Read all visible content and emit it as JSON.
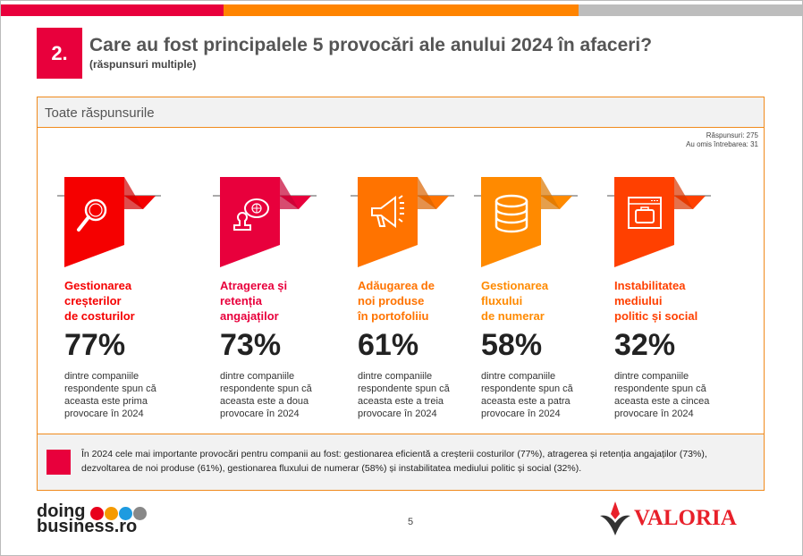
{
  "header": {
    "number": "2.",
    "title": "Care au fost principalele 5 provocări ale anului 2024 în afaceri?",
    "subtitle": "(răspunsuri multiple)"
  },
  "colors": {
    "red": "#e8003c",
    "orange": "#ff8400",
    "gray": "#bdbdbd"
  },
  "panel": {
    "title": "Toate răspunsurile",
    "responses": "Răspunsuri: 275",
    "skipped": "Au omis întrebarea: 31"
  },
  "cards": [
    {
      "icon": "magnifier-icon",
      "color": "#f50000",
      "title_lines": [
        "Gestionarea",
        "creșterilor",
        "de costurilor"
      ],
      "percent": "77%",
      "desc_lines": [
        "dintre companiile",
        "respondente spun că",
        "aceasta este prima",
        "provocare în 2024"
      ]
    },
    {
      "icon": "stamp-globe-icon",
      "color": "#e8003c",
      "title_lines": [
        "Atragerea și",
        "retenția",
        "angajaților"
      ],
      "percent": "73%",
      "desc_lines": [
        "dintre companiile",
        "respondente spun că",
        "aceasta este a doua",
        "provocare în 2024"
      ]
    },
    {
      "icon": "megaphone-icon",
      "color": "#ff7300",
      "title_lines": [
        "Adăugarea de",
        "noi produse",
        "în portofoliiu"
      ],
      "percent": "61%",
      "desc_lines": [
        "dintre companiile",
        "respondente spun că",
        "aceasta este a treia",
        "provocare în 2024"
      ]
    },
    {
      "icon": "database-icon",
      "color": "#ff8a00",
      "title_lines": [
        "Gestionarea",
        "fluxului",
        "de numerar"
      ],
      "percent": "58%",
      "desc_lines": [
        "dintre companiile",
        "respondente spun că",
        "aceasta este a patra",
        "provocare în 2024"
      ]
    },
    {
      "icon": "browser-briefcase-icon",
      "color": "#ff4000",
      "title_lines": [
        "Instabilitatea",
        "mediului",
        "politic și social"
      ],
      "percent": "32%",
      "desc_lines": [
        "dintre companiile",
        "respondente spun că",
        "aceasta este a cincea",
        "provocare în 2024"
      ]
    }
  ],
  "summary": "În 2024 cele mai importante provocări pentru companii au fost: gestionarea eficientă a creșterii costurilor (77%), atragerea și retenția angajaților (73%), dezvoltarea de noi produse (61%), gestionarea fluxului de numerar (58%) și instabilitatea mediului politic și social (32%).",
  "footer": {
    "page": "5",
    "logo_left_line1": "doing",
    "logo_left_line2": "business.ro",
    "logo_right": "VALORIA"
  }
}
